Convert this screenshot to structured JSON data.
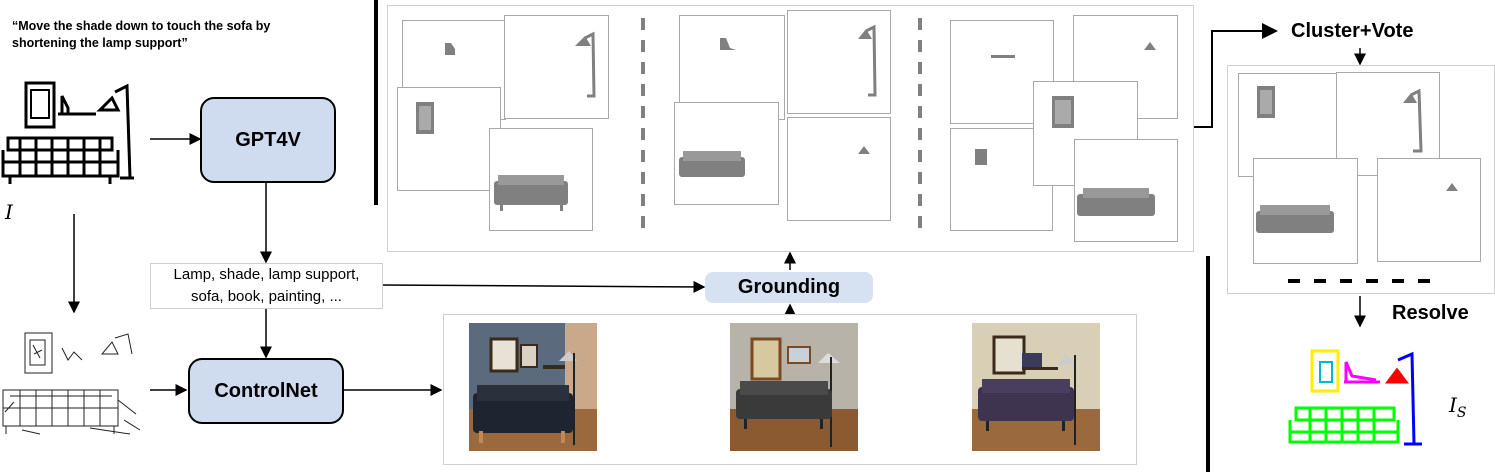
{
  "caption": {
    "line1": "“Move the shade down to touch the sofa by",
    "line2": "shortening the lamp support”"
  },
  "input_label": "I",
  "nodes": {
    "gpt": "GPT4V",
    "controlnet": "ControlNet",
    "grounding": "Grounding"
  },
  "object_list": {
    "line1": "Lamp, shade, lamp support,",
    "line2": "sofa, book, painting, ..."
  },
  "labels": {
    "cluster": "Cluster+Vote",
    "resolve": "Resolve"
  },
  "output_label": {
    "base": "I",
    "sub": "S"
  },
  "colors": {
    "node_fill": "#cfdcf0",
    "grounding_fill": "#d6e1f2",
    "mask_gray": "#808080",
    "painting_yellow": "#ffee00",
    "book_magenta": "#ff00ff",
    "shade_red": "#ff0000",
    "lamp_blue": "#0000ff",
    "sofa_green": "#00ff00",
    "wall_blue": "#5b6a7d",
    "wall_beige": "#d9cfb7",
    "floor_wood": "#9a6a3e"
  }
}
